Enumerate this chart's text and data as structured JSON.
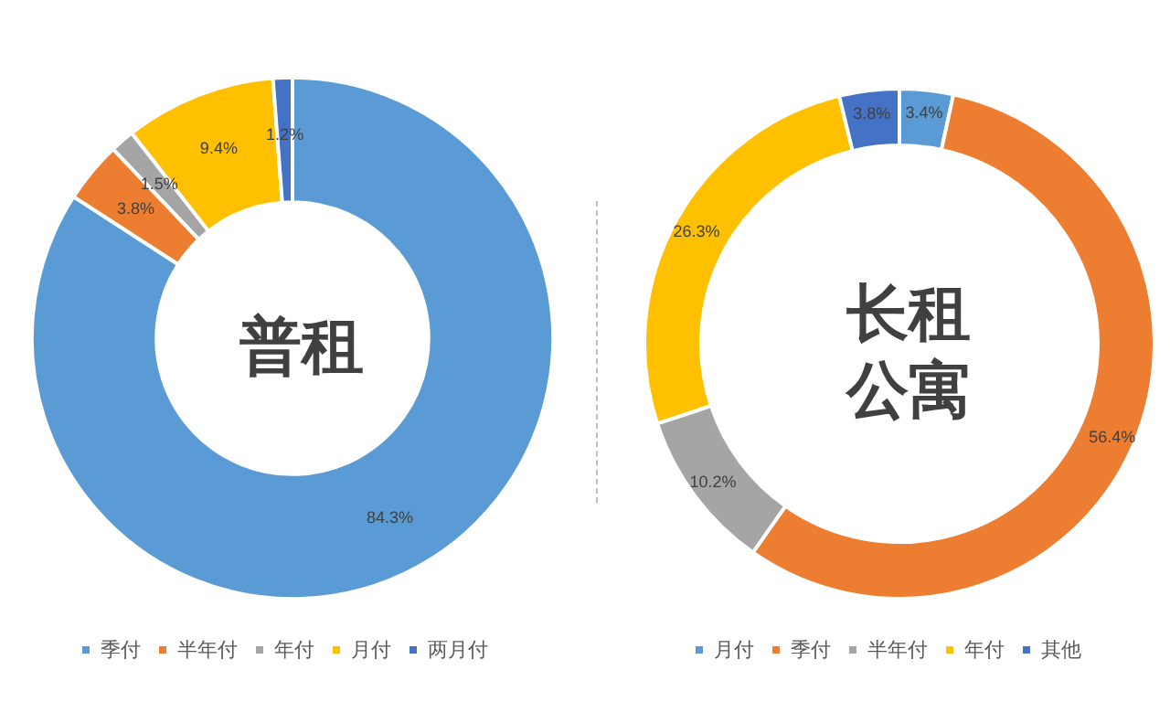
{
  "chart_data": [
    {
      "type": "donut",
      "title": "普租",
      "categories": [
        "季付",
        "半年付",
        "年付",
        "月付",
        "两月付"
      ],
      "values": [
        84.3,
        3.8,
        1.5,
        9.4,
        1.2
      ],
      "value_labels": [
        "84.3%",
        "3.8%",
        "1.5%",
        "9.4%",
        "1.2%"
      ],
      "colors": [
        "#5b9bd5",
        "#ed7d31",
        "#a5a5a5",
        "#ffc000",
        "#4472c4"
      ],
      "legend": "bottom"
    },
    {
      "type": "donut",
      "title": "长租公寓",
      "categories": [
        "月付",
        "季付",
        "半年付",
        "年付",
        "其他"
      ],
      "values": [
        3.4,
        56.4,
        10.2,
        26.3,
        3.8
      ],
      "value_labels": [
        "3.4%",
        "56.4%",
        "10.2%",
        "26.3%",
        "3.8%"
      ],
      "colors": [
        "#5b9bd5",
        "#ed7d31",
        "#a5a5a5",
        "#ffc000",
        "#4472c4"
      ],
      "legend": "bottom"
    }
  ]
}
